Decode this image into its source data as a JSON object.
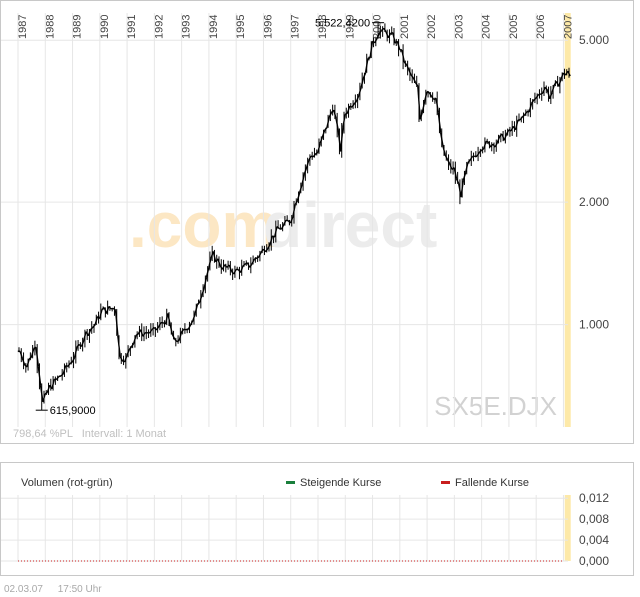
{
  "chart_data": [
    {
      "type": "candlestick",
      "ticker_watermark": "SX5E.DJX",
      "brand_watermark_left": ".com",
      "brand_watermark_right": "direct",
      "y_scale": "log",
      "ylim": [
        560,
        5900
      ],
      "yticks": [
        {
          "value": 1000,
          "label": "1.000"
        },
        {
          "value": 2000,
          "label": "2.000"
        },
        {
          "value": 5000,
          "label": "5.000"
        }
      ],
      "x_year_labels": [
        "1987",
        "1988",
        "1989",
        "1990",
        "1991",
        "1992",
        "1993",
        "1994",
        "1995",
        "1996",
        "1997",
        "1998",
        "1999",
        "2000",
        "2001",
        "2002",
        "2003",
        "2004",
        "2005",
        "2006",
        "2007"
      ],
      "max_annotation": {
        "label": "5.522,4200",
        "date": "2000-03",
        "value": 5522.42
      },
      "min_annotation": {
        "label": "615,9000",
        "date": "1987-11",
        "value": 615.9
      },
      "info_text": "798,64 %PL   Intervall: 1 Monat",
      "grid": true,
      "series": [
        {
          "name": "",
          "interval": "monthly",
          "x_start": "1987-01",
          "x_end": "2007-03",
          "keypoints": [
            [
              "1987-01",
              860
            ],
            [
              "1987-04",
              790
            ],
            [
              "1987-08",
              900
            ],
            [
              "1987-10",
              720
            ],
            [
              "1987-11",
              640
            ],
            [
              "1988-02",
              700
            ],
            [
              "1988-08",
              760
            ],
            [
              "1988-12",
              820
            ],
            [
              "1989-06",
              950
            ],
            [
              "1989-10",
              1000
            ],
            [
              "1990-01",
              1080
            ],
            [
              "1990-07",
              1100
            ],
            [
              "1990-09",
              830
            ],
            [
              "1990-12",
              830
            ],
            [
              "1991-04",
              950
            ],
            [
              "1991-12",
              960
            ],
            [
              "1992-06",
              1040
            ],
            [
              "1992-09",
              900
            ],
            [
              "1992-12",
              940
            ],
            [
              "1993-06",
              1050
            ],
            [
              "1993-12",
              1380
            ],
            [
              "1994-02",
              1480
            ],
            [
              "1994-06",
              1390
            ],
            [
              "1994-12",
              1350
            ],
            [
              "1995-06",
              1400
            ],
            [
              "1995-12",
              1520
            ],
            [
              "1996-06",
              1700
            ],
            [
              "1996-12",
              1800
            ],
            [
              "1997-06",
              2350
            ],
            [
              "1997-09",
              2600
            ],
            [
              "1997-12",
              2650
            ],
            [
              "1998-07",
              3450
            ],
            [
              "1998-10",
              2700
            ],
            [
              "1998-12",
              3300
            ],
            [
              "1999-06",
              3700
            ],
            [
              "1999-12",
              4850
            ],
            [
              "2000-03",
              5300
            ],
            [
              "2000-09",
              5100
            ],
            [
              "2000-12",
              4800
            ],
            [
              "2001-03",
              4300
            ],
            [
              "2001-08",
              3800
            ],
            [
              "2001-09",
              3200
            ],
            [
              "2001-12",
              3800
            ],
            [
              "2002-04",
              3600
            ],
            [
              "2002-07",
              2700
            ],
            [
              "2002-10",
              2450
            ],
            [
              "2002-12",
              2400
            ],
            [
              "2003-03",
              2100
            ],
            [
              "2003-06",
              2450
            ],
            [
              "2003-12",
              2750
            ],
            [
              "2004-06",
              2800
            ],
            [
              "2004-12",
              2950
            ],
            [
              "2005-06",
              3200
            ],
            [
              "2005-12",
              3600
            ],
            [
              "2006-04",
              3850
            ],
            [
              "2006-06",
              3650
            ],
            [
              "2006-12",
              4100
            ],
            [
              "2007-02",
              4200
            ],
            [
              "2007-03",
              4030
            ]
          ]
        }
      ]
    },
    {
      "type": "bar",
      "title": "Volumen (rot-grün)",
      "legend": [
        {
          "label": "Steigende Kurse",
          "color": "#1a7f3c"
        },
        {
          "label": "Fallende Kurse",
          "color": "#c81e1e"
        }
      ],
      "ylim": [
        0,
        0.013
      ],
      "yticks": [
        {
          "value": 0,
          "label": "0,000"
        },
        {
          "value": 0.004,
          "label": "0,004"
        },
        {
          "value": 0.008,
          "label": "0,008"
        },
        {
          "value": 0.012,
          "label": "0,012"
        }
      ],
      "grid": true,
      "series": [
        {
          "name": "Steigende Kurse",
          "values": []
        },
        {
          "name": "Fallende Kurse",
          "values": []
        }
      ]
    }
  ],
  "footer": {
    "date": "02.03.07",
    "time": "17:50 Uhr"
  },
  "colors": {
    "candle": "#000000",
    "grid": "#e6e6e6",
    "axis_text": "#444444",
    "highlight": "#fde9a8",
    "watermark_orange": "#fce7c4",
    "watermark_grey": "#ececec",
    "ticker_grey": "#d2d2d2",
    "info_grey": "#bfbfbf"
  }
}
